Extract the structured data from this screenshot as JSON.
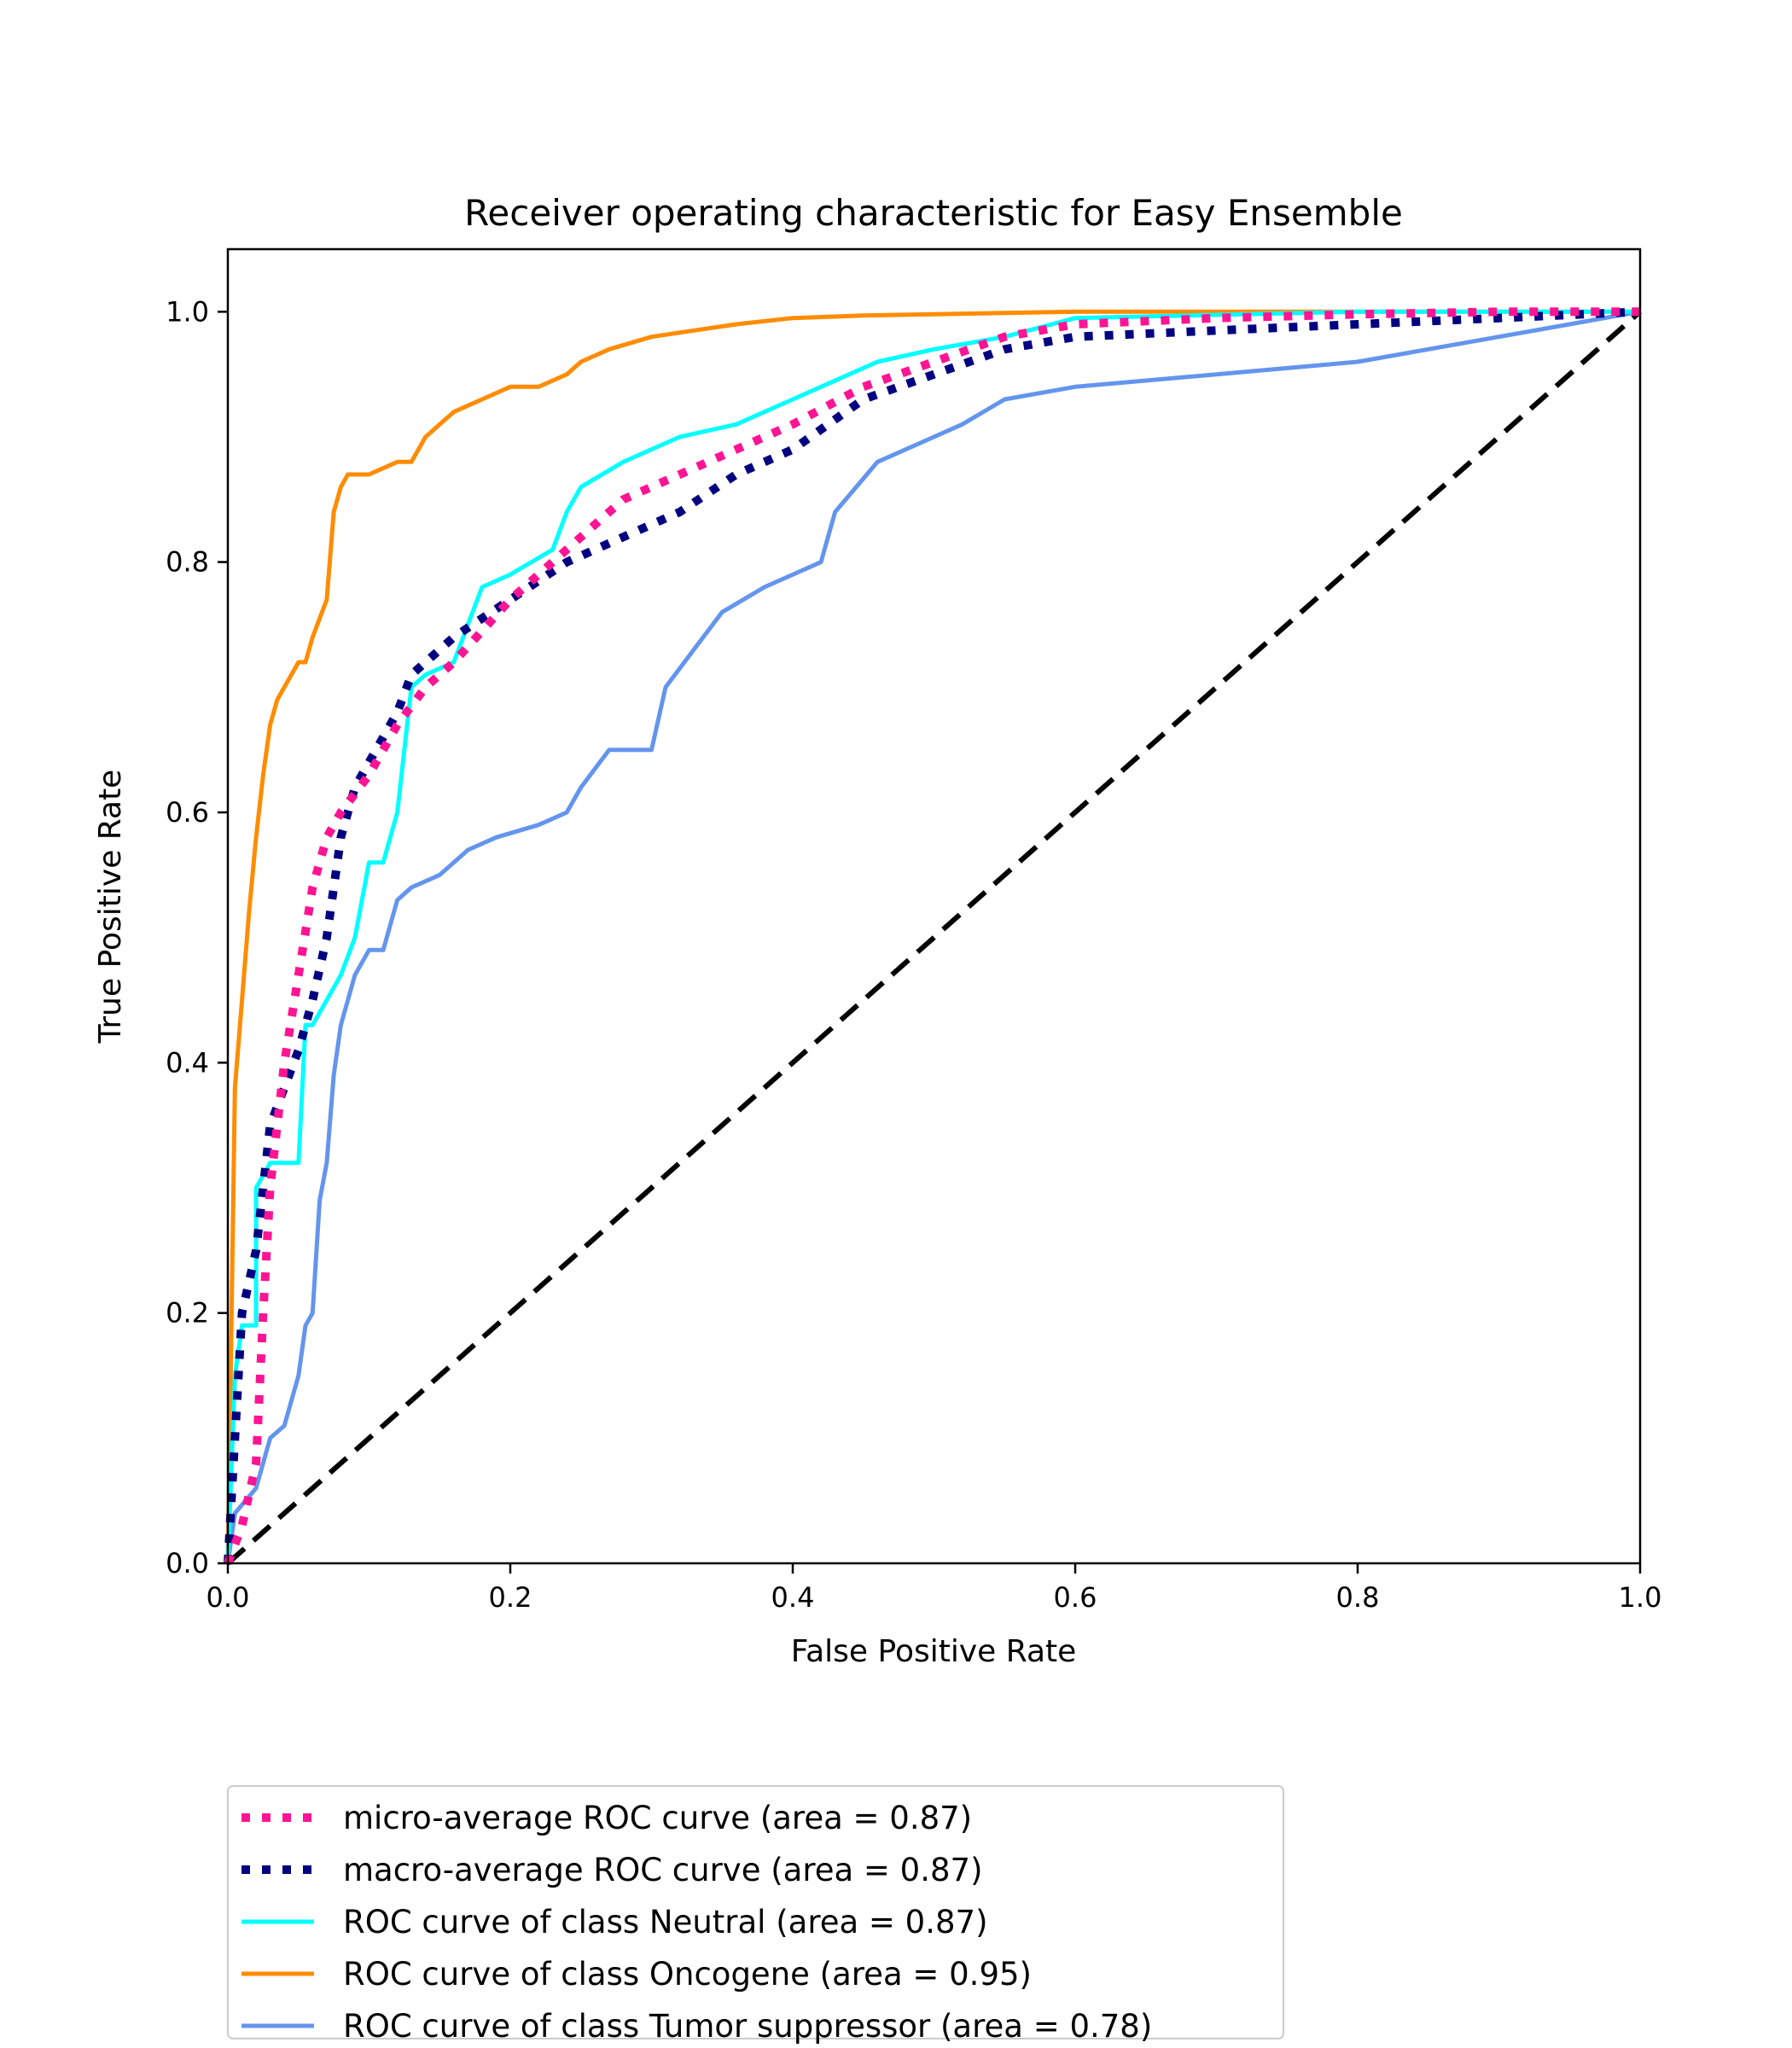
{
  "chart_data": {
    "type": "line",
    "title": "Receiver operating characteristic for Easy Ensemble",
    "xlabel": "False Positive Rate",
    "ylabel": "True Positive Rate",
    "xlim": [
      0.0,
      1.0
    ],
    "ylim": [
      0.0,
      1.05
    ],
    "xticks": [
      "0.0",
      "0.2",
      "0.4",
      "0.6",
      "0.8",
      "1.0"
    ],
    "yticks": [
      "0.0",
      "0.2",
      "0.4",
      "0.6",
      "0.8",
      "1.0"
    ],
    "grid": false,
    "legend_position": "below-plot",
    "series": [
      {
        "name": "micro-average ROC curve (area = 0.87)",
        "color": "#ff1493",
        "style": "dotted",
        "x": [
          0.0,
          0.01,
          0.02,
          0.025,
          0.03,
          0.035,
          0.04,
          0.05,
          0.06,
          0.07,
          0.08,
          0.1,
          0.12,
          0.14,
          0.16,
          0.2,
          0.24,
          0.28,
          0.32,
          0.36,
          0.4,
          0.45,
          0.5,
          0.55,
          0.6,
          0.7,
          0.8,
          0.9,
          1.0
        ],
        "y": [
          0.0,
          0.03,
          0.08,
          0.2,
          0.3,
          0.35,
          0.4,
          0.47,
          0.54,
          0.58,
          0.6,
          0.63,
          0.67,
          0.7,
          0.72,
          0.77,
          0.81,
          0.85,
          0.87,
          0.89,
          0.91,
          0.94,
          0.96,
          0.98,
          0.99,
          0.995,
          0.998,
          1.0,
          1.0
        ]
      },
      {
        "name": "macro-average ROC curve (area = 0.87)",
        "color": "#000080",
        "style": "dotted",
        "x": [
          0.0,
          0.005,
          0.01,
          0.02,
          0.025,
          0.03,
          0.04,
          0.05,
          0.06,
          0.07,
          0.08,
          0.09,
          0.1,
          0.12,
          0.13,
          0.16,
          0.2,
          0.24,
          0.28,
          0.32,
          0.36,
          0.4,
          0.45,
          0.5,
          0.55,
          0.6,
          0.7,
          0.8,
          0.9,
          1.0
        ],
        "y": [
          0.0,
          0.1,
          0.2,
          0.25,
          0.3,
          0.35,
          0.38,
          0.41,
          0.45,
          0.5,
          0.58,
          0.62,
          0.64,
          0.68,
          0.71,
          0.74,
          0.77,
          0.8,
          0.82,
          0.84,
          0.87,
          0.89,
          0.93,
          0.95,
          0.97,
          0.98,
          0.985,
          0.99,
          0.995,
          1.0
        ]
      },
      {
        "name": "ROC curve of class Neutral (area = 0.87)",
        "color": "#00ffff",
        "style": "solid",
        "x": [
          0.0,
          0.005,
          0.01,
          0.02,
          0.02,
          0.03,
          0.05,
          0.055,
          0.06,
          0.07,
          0.08,
          0.09,
          0.1,
          0.11,
          0.12,
          0.13,
          0.14,
          0.16,
          0.18,
          0.2,
          0.23,
          0.24,
          0.25,
          0.28,
          0.32,
          0.36,
          0.4,
          0.42,
          0.46,
          0.5,
          0.55,
          0.6,
          0.8,
          1.0
        ],
        "y": [
          0.0,
          0.15,
          0.19,
          0.19,
          0.3,
          0.32,
          0.32,
          0.43,
          0.43,
          0.45,
          0.47,
          0.5,
          0.56,
          0.56,
          0.6,
          0.7,
          0.71,
          0.72,
          0.78,
          0.79,
          0.81,
          0.84,
          0.86,
          0.88,
          0.9,
          0.91,
          0.93,
          0.94,
          0.96,
          0.97,
          0.98,
          0.995,
          1.0,
          1.0
        ]
      },
      {
        "name": "ROC curve of class Oncogene (area = 0.95)",
        "color": "#ff8c00",
        "style": "solid",
        "x": [
          0.0,
          0.005,
          0.01,
          0.015,
          0.02,
          0.025,
          0.03,
          0.035,
          0.04,
          0.045,
          0.05,
          0.055,
          0.06,
          0.07,
          0.075,
          0.08,
          0.085,
          0.09,
          0.1,
          0.12,
          0.13,
          0.14,
          0.15,
          0.16,
          0.18,
          0.2,
          0.22,
          0.24,
          0.25,
          0.27,
          0.3,
          0.33,
          0.36,
          0.4,
          0.45,
          0.5,
          0.6,
          0.7,
          0.8,
          0.9,
          1.0
        ],
        "y": [
          0.0,
          0.38,
          0.45,
          0.52,
          0.58,
          0.63,
          0.67,
          0.69,
          0.7,
          0.71,
          0.72,
          0.72,
          0.74,
          0.77,
          0.84,
          0.86,
          0.87,
          0.87,
          0.87,
          0.88,
          0.88,
          0.9,
          0.91,
          0.92,
          0.93,
          0.94,
          0.94,
          0.95,
          0.96,
          0.97,
          0.98,
          0.985,
          0.99,
          0.995,
          0.997,
          0.998,
          1.0,
          1.0,
          1.0,
          1.0,
          1.0
        ]
      },
      {
        "name": "ROC curve of class Tumor suppressor (area = 0.78)",
        "color": "#6495ed",
        "style": "solid",
        "x": [
          0.0,
          0.005,
          0.02,
          0.03,
          0.04,
          0.05,
          0.055,
          0.06,
          0.065,
          0.07,
          0.075,
          0.08,
          0.09,
          0.1,
          0.11,
          0.12,
          0.13,
          0.15,
          0.17,
          0.19,
          0.22,
          0.24,
          0.25,
          0.27,
          0.3,
          0.31,
          0.33,
          0.35,
          0.38,
          0.42,
          0.43,
          0.46,
          0.5,
          0.52,
          0.55,
          0.6,
          0.7,
          0.8,
          0.85,
          0.9,
          0.95,
          1.0
        ],
        "y": [
          0.0,
          0.04,
          0.06,
          0.1,
          0.11,
          0.15,
          0.19,
          0.2,
          0.29,
          0.32,
          0.39,
          0.43,
          0.47,
          0.49,
          0.49,
          0.53,
          0.54,
          0.55,
          0.57,
          0.58,
          0.59,
          0.6,
          0.62,
          0.65,
          0.65,
          0.7,
          0.73,
          0.76,
          0.78,
          0.8,
          0.84,
          0.88,
          0.9,
          0.91,
          0.93,
          0.94,
          0.95,
          0.96,
          0.97,
          0.98,
          0.99,
          1.0
        ]
      },
      {
        "name": "",
        "color": "#000000",
        "style": "dashed",
        "x": [
          0.0,
          1.0
        ],
        "y": [
          0.0,
          1.0
        ]
      }
    ]
  }
}
